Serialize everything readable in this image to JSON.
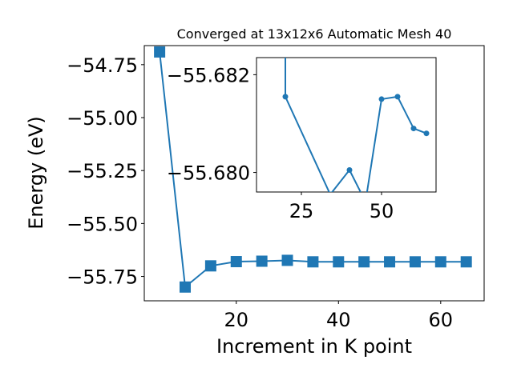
{
  "chart_data": [
    {
      "type": "line",
      "title": "Converged at 13x12x6 Automatic Mesh 40",
      "xlabel": "Increment in K point",
      "ylabel": "Energy (eV)",
      "xlim": [
        2,
        68.5
      ],
      "ylim": [
        -55.865,
        -54.66
      ],
      "xticks": [
        20,
        40,
        60
      ],
      "yticks": [
        -54.75,
        -55.0,
        -55.25,
        -55.5,
        -55.75
      ],
      "ytick_labels": [
        "−54.75",
        "−55.00",
        "−55.25",
        "−55.50",
        "−55.75"
      ],
      "grid": false,
      "marker": "square",
      "color": "#1f77b4",
      "series": [
        {
          "x": [
            5,
            10,
            15,
            20,
            25,
            30,
            35,
            40,
            45,
            50,
            55,
            60,
            65
          ],
          "y": [
            -54.69,
            -55.8,
            -55.7,
            -55.68,
            -55.678,
            -55.674,
            -55.681,
            -55.681,
            -55.681,
            -55.681,
            -55.681,
            -55.681,
            -55.681
          ]
        }
      ]
    },
    {
      "type": "line",
      "inset": true,
      "xlim": [
        11,
        67
      ],
      "ylim": [
        -55.6796,
        -55.68235
      ],
      "xticks": [
        25,
        50
      ],
      "yticks": [
        -55.682,
        -55.68
      ],
      "ytick_labels": [
        "−55.682",
        "−55.680"
      ],
      "grid": false,
      "marker": "circle",
      "color": "#1f77b4",
      "series": [
        {
          "x": [
            20,
            20,
            34,
            40,
            45,
            50,
            55,
            60,
            64
          ],
          "y": [
            -55.683,
            -55.68155,
            -55.67955,
            -55.68005,
            -55.6794,
            -55.6815,
            -55.68155,
            -55.6809,
            -55.6808
          ]
        }
      ]
    }
  ]
}
